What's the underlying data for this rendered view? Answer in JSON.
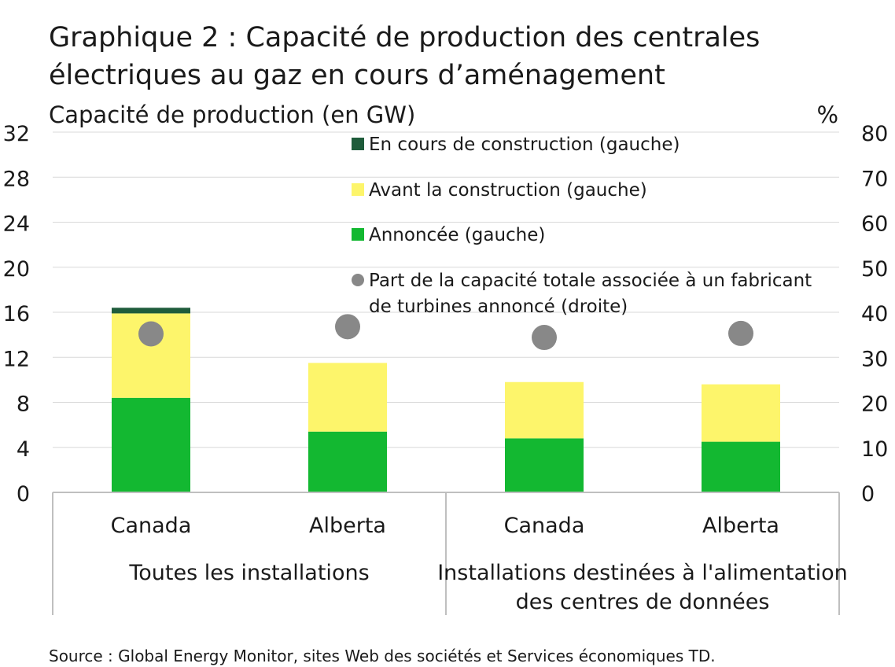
{
  "title_line1": "Graphique 2 : Capacité de production des centrales",
  "title_line2": "électriques au gaz en cours d’aménagement",
  "source": "Source : Global Energy Monitor, sites Web des sociétés et Services économiques TD.",
  "colors": {
    "construction": "#1f5c3b",
    "pre_construction": "#fdf56b",
    "announced": "#13b831",
    "share": "#888888",
    "grid": "#d9d9d9",
    "axis": "#bfbfbf",
    "text": "#1a1a1a"
  },
  "chart_data": {
    "type": "bar",
    "stacked": true,
    "title": "Graphique 2 : Capacité de production des centrales électriques au gaz en cours d’aménagement",
    "ylabel": "Capacité de production (en GW)",
    "y2label": "%",
    "ylim": [
      0,
      32
    ],
    "y2lim": [
      0,
      80
    ],
    "yticks": [
      0,
      4,
      8,
      12,
      16,
      20,
      24,
      28,
      32
    ],
    "y2ticks": [
      0,
      10,
      20,
      30,
      40,
      50,
      60,
      70,
      80
    ],
    "grid": true,
    "legend_position": "top-center",
    "categories": [
      "Canada",
      "Alberta",
      "Canada",
      "Alberta"
    ],
    "groups": [
      {
        "label": "Toutes les installations",
        "categories": [
          0,
          1
        ]
      },
      {
        "label": "Installations destinées à l'alimentation des centres de données",
        "label_lines": [
          "Installations destinées à l'alimentation",
          "des centres de données"
        ],
        "categories": [
          2,
          3
        ]
      }
    ],
    "series": [
      {
        "name": "Annoncée (gauche)",
        "axis": "left",
        "kind": "bar",
        "color_key": "announced",
        "values": [
          8.4,
          5.4,
          4.8,
          4.5
        ]
      },
      {
        "name": "Avant la construction (gauche)",
        "axis": "left",
        "kind": "bar",
        "color_key": "pre_construction",
        "values": [
          7.5,
          6.1,
          5.0,
          5.1
        ]
      },
      {
        "name": "En cours de construction (gauche)",
        "axis": "left",
        "kind": "bar",
        "color_key": "construction",
        "values": [
          0.5,
          0.0,
          0.0,
          0.0
        ]
      },
      {
        "name": "Part de la capacité totale associée à un fabricant de turbines annoncé (droite)",
        "name_lines": [
          "Part de la capacité totale associée à un fabricant",
          "de turbines annoncé (droite)"
        ],
        "axis": "right",
        "kind": "scatter",
        "color_key": "share",
        "values": [
          35.2,
          36.8,
          34.4,
          35.3
        ]
      }
    ],
    "legend_order": [
      2,
      1,
      0,
      3
    ]
  }
}
